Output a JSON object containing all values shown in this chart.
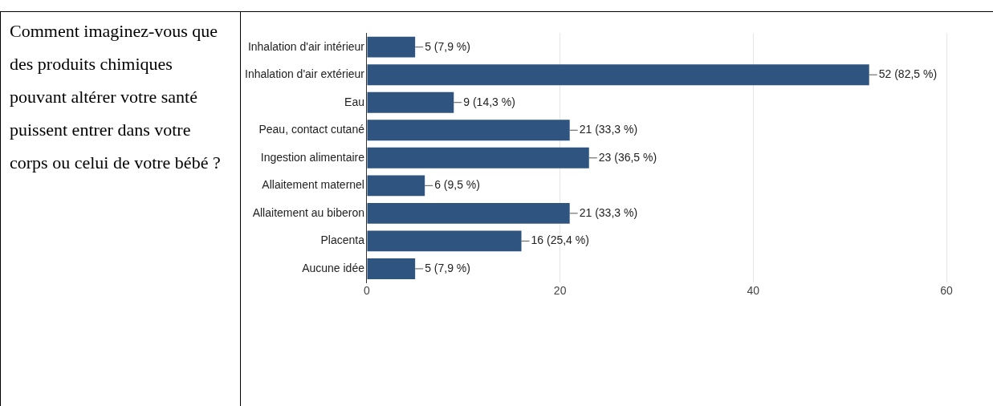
{
  "chart_data": {
    "type": "bar",
    "orientation": "horizontal",
    "title": "Comment imaginez-vous que des produits chimiques pouvant altérer votre santé puissent entrer dans votre corps ou celui de votre bébé ?",
    "categories": [
      "Inhalation d'air intérieur",
      "Inhalation d'air extérieur",
      "Eau",
      "Peau, contact cutané",
      "Ingestion alimentaire",
      "Allaitement maternel",
      "Allaitement au biberon",
      "Placenta",
      "Aucune idée"
    ],
    "values": [
      5,
      52,
      9,
      21,
      23,
      6,
      21,
      16,
      5
    ],
    "value_labels": [
      "5 (7,9 %)",
      "52 (82,5 %)",
      "9 (14,3 %)",
      "21 (33,3 %)",
      "23 (36,5 %)",
      "6 (9,5 %)",
      "21 (33,3 %)",
      "16 (25,4 %)",
      "5 (7,9 %)"
    ],
    "color": "#2f5480",
    "xlim": [
      0,
      60
    ],
    "xticks": [
      0,
      20,
      40,
      60
    ],
    "grid": "x",
    "legend": false
  }
}
